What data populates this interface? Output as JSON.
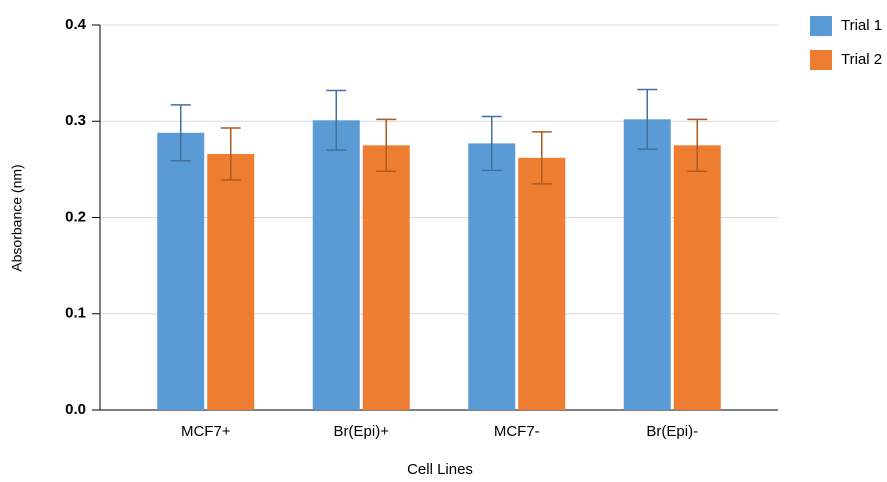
{
  "chart_data": {
    "type": "bar",
    "x_label": "Cell Lines",
    "y_label": "Absorbance (nm)",
    "categories": [
      "MCF7+",
      "Br(Epi)+",
      "MCF7-",
      "Br(Epi)-"
    ],
    "series": [
      {
        "name": "Trial 1",
        "color": "#5b9bd5",
        "error_color": "#41719c",
        "values": [
          0.288,
          0.301,
          0.277,
          0.302
        ],
        "errors": [
          0.029,
          0.031,
          0.028,
          0.031
        ]
      },
      {
        "name": "Trial 2",
        "color": "#ed7d31",
        "error_color": "#ae5a21",
        "values": [
          0.266,
          0.275,
          0.262,
          0.275
        ],
        "errors": [
          0.027,
          0.027,
          0.027,
          0.027
        ]
      }
    ],
    "ylim": [
      0,
      0.4
    ],
    "yticks": [
      {
        "value": 0,
        "label": "0.0"
      },
      0.1,
      0.2,
      0.3,
      0.4
    ],
    "grid": true,
    "legend": "right"
  }
}
